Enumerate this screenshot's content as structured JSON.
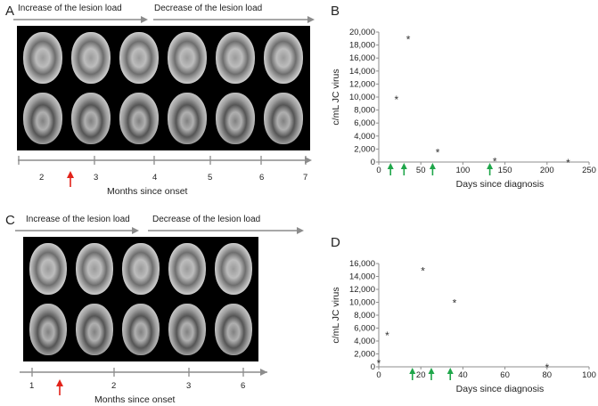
{
  "panels": {
    "A": {
      "letter": "A",
      "header_left": "Increase of the lesion load",
      "header_right": "Decrease of the lesion load",
      "timeline_ticks": [
        "2",
        "3",
        "4",
        "5",
        "6",
        "7"
      ],
      "timeline_title": "Months since onset"
    },
    "B": {
      "letter": "B"
    },
    "C": {
      "letter": "C",
      "header_left": "Increase of the lesion load",
      "header_right": "Decrease of the lesion load",
      "timeline_ticks": [
        "1",
        "2",
        "3",
        "6"
      ],
      "timeline_title": "Months since onset"
    },
    "D": {
      "letter": "D"
    }
  },
  "colors": {
    "red_arrow": "#e2231a",
    "green_arrow": "#1fa64a",
    "axis": "#8c8c8c",
    "mri_bg": "#000000"
  },
  "chart_data": [
    {
      "type": "scatter",
      "panel": "B",
      "xlabel": "Days since diagnosis",
      "ylabel": "c/mL JC virus",
      "xlim": [
        0,
        250
      ],
      "ylim": [
        0,
        20000
      ],
      "xticks": [
        0,
        50,
        100,
        150,
        200,
        250
      ],
      "xtick_labels": [
        "0",
        "50",
        "100",
        "150",
        "200",
        "250"
      ],
      "yticks": [
        0,
        2000,
        4000,
        6000,
        8000,
        10000,
        12000,
        14000,
        16000,
        18000,
        20000
      ],
      "ytick_labels": [
        "0",
        "2,000",
        "4,000",
        "6,000",
        "8,000",
        "10,000",
        "12,000",
        "14,000",
        "16,000",
        "18,000",
        "20,000"
      ],
      "points": [
        {
          "x": 21,
          "y": 9700
        },
        {
          "x": 35,
          "y": 19000
        },
        {
          "x": 70,
          "y": 1600
        },
        {
          "x": 138,
          "y": 200
        },
        {
          "x": 225,
          "y": 0
        }
      ],
      "marker": "*",
      "arrow_days": [
        14,
        30,
        64,
        132
      ]
    },
    {
      "type": "scatter",
      "panel": "D",
      "xlabel": "Days since diagnosis",
      "ylabel": "c/mL JC virus",
      "xlim": [
        0,
        100
      ],
      "ylim": [
        0,
        16000
      ],
      "xticks": [
        0,
        20,
        40,
        60,
        80,
        100
      ],
      "xtick_labels": [
        "0",
        "20",
        "40",
        "60",
        "80",
        "100"
      ],
      "yticks": [
        0,
        2000,
        4000,
        6000,
        8000,
        10000,
        12000,
        14000,
        16000
      ],
      "ytick_labels": [
        "0",
        "2,000",
        "4,000",
        "6,000",
        "8,000",
        "10,000",
        "12,000",
        "14,000",
        "16,000"
      ],
      "points": [
        {
          "x": 0,
          "y": 700
        },
        {
          "x": 4,
          "y": 5000
        },
        {
          "x": 21,
          "y": 15000
        },
        {
          "x": 36,
          "y": 10000
        },
        {
          "x": 80,
          "y": 0
        }
      ],
      "marker": "*",
      "arrow_days": [
        16,
        25,
        34
      ]
    }
  ]
}
